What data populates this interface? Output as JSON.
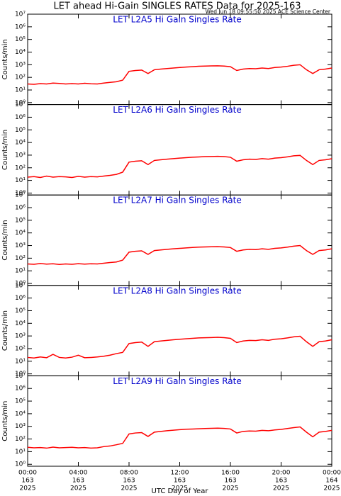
{
  "title": "LET ahead Hi-Gain SINGLES RATES Data for 2025-163",
  "timestamp": "Wed Jun 18 09:55:50 2025 ACE Science Center",
  "chart_data": [
    {
      "type": "line",
      "title": "LET L2A5 Hi Gain Singles Rate",
      "ylabel": "Counts/min",
      "log_y": true,
      "xlim": [
        0,
        24
      ],
      "xticks": [
        0,
        4,
        8,
        12,
        16,
        20,
        24
      ],
      "ylim": [
        0.7,
        10000000
      ],
      "yticks": [
        {
          "value": 1,
          "label": "10⁰"
        },
        {
          "value": 10,
          "label": "10¹"
        },
        {
          "value": 100,
          "label": "10²"
        },
        {
          "value": 1000,
          "label": "10³"
        },
        {
          "value": 10000,
          "label": "10⁴"
        },
        {
          "value": 100000,
          "label": "10⁵"
        },
        {
          "value": 1000000,
          "label": "10⁶"
        },
        {
          "value": 10000000,
          "label": "10⁷"
        }
      ],
      "x": [
        0,
        0.5,
        1,
        1.5,
        2,
        2.5,
        3,
        3.5,
        4,
        4.5,
        5,
        5.5,
        6,
        6.5,
        7,
        7.5,
        8,
        8.5,
        9,
        9.5,
        10,
        10.5,
        11,
        11.5,
        12,
        12.5,
        13,
        13.5,
        14,
        14.5,
        15,
        15.5,
        16,
        16.5,
        17,
        17.5,
        18,
        18.5,
        19,
        19.5,
        20,
        20.5,
        21,
        21.5,
        22,
        22.5,
        23,
        23.5,
        24
      ],
      "series": [
        {
          "color": "#ff0000",
          "values": [
            30,
            28,
            32,
            30,
            35,
            33,
            30,
            32,
            30,
            34,
            31,
            30,
            35,
            40,
            45,
            60,
            300,
            350,
            380,
            200,
            400,
            450,
            500,
            550,
            600,
            650,
            700,
            750,
            780,
            800,
            820,
            780,
            700,
            350,
            450,
            500,
            480,
            550,
            500,
            600,
            650,
            750,
            900,
            1000,
            400,
            200,
            400,
            450,
            550
          ]
        }
      ]
    },
    {
      "type": "line",
      "title": "LET L2A6 Hi Gain Singles Rate",
      "ylabel": "Counts/min",
      "log_y": true,
      "xlim": [
        0,
        24
      ],
      "xticks": [
        0,
        4,
        8,
        12,
        16,
        20,
        24
      ],
      "ylim": [
        0.7,
        10000000
      ],
      "yticks": [
        {
          "value": 1,
          "label": "10⁰"
        },
        {
          "value": 10,
          "label": "10¹"
        },
        {
          "value": 100,
          "label": "10²"
        },
        {
          "value": 1000,
          "label": "10³"
        },
        {
          "value": 10000,
          "label": "10⁴"
        },
        {
          "value": 100000,
          "label": "10⁵"
        },
        {
          "value": 1000000,
          "label": "10⁶"
        },
        {
          "value": 10000000,
          "label": "10⁷"
        }
      ],
      "x": [
        0,
        0.5,
        1,
        1.5,
        2,
        2.5,
        3,
        3.5,
        4,
        4.5,
        5,
        5.5,
        6,
        6.5,
        7,
        7.5,
        8,
        8.5,
        9,
        9.5,
        10,
        10.5,
        11,
        11.5,
        12,
        12.5,
        13,
        13.5,
        14,
        14.5,
        15,
        15.5,
        16,
        16.5,
        17,
        17.5,
        18,
        18.5,
        19,
        19.5,
        20,
        20.5,
        21,
        21.5,
        22,
        22.5,
        23,
        23.5,
        24
      ],
      "series": [
        {
          "color": "#ff0000",
          "values": [
            18,
            20,
            17,
            22,
            18,
            20,
            19,
            17,
            21,
            18,
            20,
            19,
            22,
            25,
            30,
            45,
            280,
            330,
            360,
            180,
            380,
            430,
            480,
            530,
            580,
            630,
            680,
            720,
            760,
            780,
            800,
            760,
            680,
            330,
            430,
            480,
            460,
            530,
            480,
            580,
            630,
            730,
            880,
            950,
            380,
            180,
            380,
            430,
            520
          ]
        }
      ]
    },
    {
      "type": "line",
      "title": "LET L2A7 Hi Gain Singles Rate",
      "ylabel": "Counts/min",
      "log_y": true,
      "xlim": [
        0,
        24
      ],
      "xticks": [
        0,
        4,
        8,
        12,
        16,
        20,
        24
      ],
      "ylim": [
        0.7,
        10000000
      ],
      "yticks": [
        {
          "value": 1,
          "label": "10⁰"
        },
        {
          "value": 10,
          "label": "10¹"
        },
        {
          "value": 100,
          "label": "10²"
        },
        {
          "value": 1000,
          "label": "10³"
        },
        {
          "value": 10000,
          "label": "10⁴"
        },
        {
          "value": 100000,
          "label": "10⁵"
        },
        {
          "value": 1000000,
          "label": "10⁶"
        },
        {
          "value": 10000000,
          "label": "10⁷"
        }
      ],
      "x": [
        0,
        0.5,
        1,
        1.5,
        2,
        2.5,
        3,
        3.5,
        4,
        4.5,
        5,
        5.5,
        6,
        6.5,
        7,
        7.5,
        8,
        8.5,
        9,
        9.5,
        10,
        10.5,
        11,
        11.5,
        12,
        12.5,
        13,
        13.5,
        14,
        14.5,
        15,
        15.5,
        16,
        16.5,
        17,
        17.5,
        18,
        18.5,
        19,
        19.5,
        20,
        20.5,
        21,
        21.5,
        22,
        22.5,
        23,
        23.5,
        24
      ],
      "series": [
        {
          "color": "#ff0000",
          "values": [
            35,
            33,
            38,
            34,
            36,
            32,
            35,
            33,
            37,
            34,
            36,
            35,
            40,
            45,
            50,
            70,
            300,
            350,
            380,
            200,
            400,
            450,
            500,
            550,
            600,
            650,
            700,
            750,
            780,
            800,
            820,
            780,
            700,
            350,
            450,
            500,
            480,
            550,
            500,
            600,
            650,
            750,
            900,
            1000,
            400,
            200,
            400,
            450,
            550
          ]
        }
      ]
    },
    {
      "type": "line",
      "title": "LET L2A8 Hi Gain Singles Rate",
      "ylabel": "Counts/min",
      "log_y": true,
      "xlim": [
        0,
        24
      ],
      "xticks": [
        0,
        4,
        8,
        12,
        16,
        20,
        24
      ],
      "ylim": [
        0.7,
        10000000
      ],
      "yticks": [
        {
          "value": 1,
          "label": "10⁰"
        },
        {
          "value": 10,
          "label": "10¹"
        },
        {
          "value": 100,
          "label": "10²"
        },
        {
          "value": 1000,
          "label": "10³"
        },
        {
          "value": 10000,
          "label": "10⁴"
        },
        {
          "value": 100000,
          "label": "10⁵"
        },
        {
          "value": 1000000,
          "label": "10⁶"
        },
        {
          "value": 10000000,
          "label": "10⁷"
        }
      ],
      "x": [
        0,
        0.5,
        1,
        1.5,
        2,
        2.5,
        3,
        3.5,
        4,
        4.5,
        5,
        5.5,
        6,
        6.5,
        7,
        7.5,
        8,
        8.5,
        9,
        9.5,
        10,
        10.5,
        11,
        11.5,
        12,
        12.5,
        13,
        13.5,
        14,
        14.5,
        15,
        15.5,
        16,
        16.5,
        17,
        17.5,
        18,
        18.5,
        19,
        19.5,
        20,
        20.5,
        21,
        21.5,
        22,
        22.5,
        23,
        23.5,
        24
      ],
      "series": [
        {
          "color": "#ff0000",
          "values": [
            20,
            18,
            22,
            19,
            35,
            20,
            18,
            21,
            30,
            19,
            20,
            22,
            25,
            30,
            40,
            50,
            250,
            300,
            330,
            150,
            350,
            400,
            450,
            500,
            550,
            600,
            650,
            700,
            720,
            750,
            780,
            740,
            650,
            300,
            400,
            450,
            430,
            500,
            450,
            550,
            600,
            700,
            850,
            950,
            350,
            150,
            350,
            400,
            500
          ]
        }
      ]
    },
    {
      "type": "line",
      "title": "LET L2A9 Hi Gain Singles Rate",
      "ylabel": "Counts/min",
      "log_y": true,
      "xlim": [
        0,
        24
      ],
      "xticks": [
        {
          "value": 0,
          "label": "00:00"
        },
        {
          "value": 4,
          "label": "04:00"
        },
        {
          "value": 8,
          "label": "08:00"
        },
        {
          "value": 12,
          "label": "12:00"
        },
        {
          "value": 16,
          "label": "16:00"
        },
        {
          "value": 20,
          "label": "20:00"
        },
        {
          "value": 24,
          "label": "00:00"
        }
      ],
      "xtick_days": [
        "163",
        "163",
        "163",
        "163",
        "163",
        "163",
        "164"
      ],
      "xtick_years": [
        "2025",
        "2025",
        "2025",
        "2025",
        "2025",
        "2025",
        "2025"
      ],
      "xlabel": "UTC Day of Year",
      "ylim": [
        0.7,
        10000000
      ],
      "yticks": [
        {
          "value": 1,
          "label": "10⁰"
        },
        {
          "value": 10,
          "label": "10¹"
        },
        {
          "value": 100,
          "label": "10²"
        },
        {
          "value": 1000,
          "label": "10³"
        },
        {
          "value": 10000,
          "label": "10⁴"
        },
        {
          "value": 100000,
          "label": "10⁵"
        },
        {
          "value": 1000000,
          "label": "10⁶"
        },
        {
          "value": 10000000,
          "label": "10⁷"
        }
      ],
      "x": [
        0,
        0.5,
        1,
        1.5,
        2,
        2.5,
        3,
        3.5,
        4,
        4.5,
        5,
        5.5,
        6,
        6.5,
        7,
        7.5,
        8,
        8.5,
        9,
        9.5,
        10,
        10.5,
        11,
        11.5,
        12,
        12.5,
        13,
        13.5,
        14,
        14.5,
        15,
        15.5,
        16,
        16.5,
        17,
        17.5,
        18,
        18.5,
        19,
        19.5,
        20,
        20.5,
        21,
        21.5,
        22,
        22.5,
        23,
        23.5,
        24
      ],
      "series": [
        {
          "color": "#ff0000",
          "values": [
            22,
            20,
            21,
            19,
            23,
            20,
            21,
            22,
            20,
            21,
            19,
            20,
            25,
            28,
            35,
            45,
            250,
            300,
            320,
            160,
            350,
            400,
            450,
            500,
            550,
            600,
            620,
            650,
            680,
            700,
            720,
            690,
            620,
            300,
            400,
            430,
            420,
            480,
            450,
            520,
            580,
            680,
            800,
            900,
            350,
            150,
            350,
            400,
            480
          ]
        }
      ]
    }
  ]
}
